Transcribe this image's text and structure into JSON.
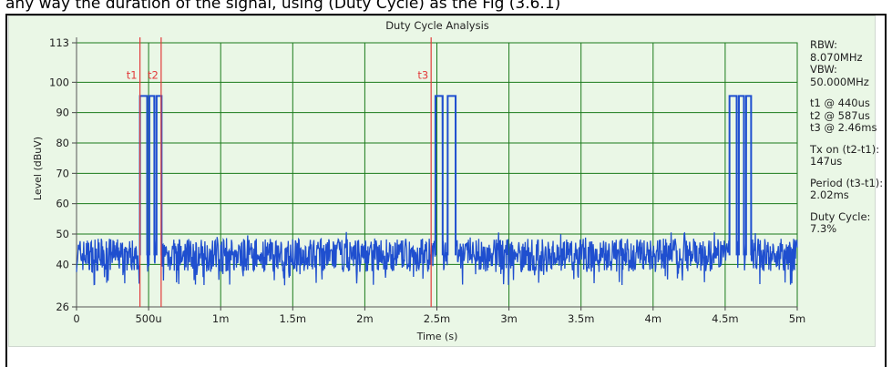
{
  "caption": "any way the duration of the signal, using (Duty Cycle) as the Fig (3.6.1)",
  "colors": {
    "panel_bg": "#eaf7e6",
    "grid": "#1a7a1a",
    "trace": "#1f4fcf",
    "marker": "#e23b3b",
    "text": "#222222"
  },
  "chart_data": {
    "type": "line",
    "title": "Duty Cycle Analysis",
    "xlabel": "Time (s)",
    "ylabel": "Level (dBuV)",
    "xlim": [
      0,
      0.005
    ],
    "ylim": [
      26,
      113
    ],
    "x_ticks": [
      {
        "value": 0,
        "label": "0"
      },
      {
        "value": 0.0005,
        "label": "500u"
      },
      {
        "value": 0.001,
        "label": "1m"
      },
      {
        "value": 0.0015,
        "label": "1.5m"
      },
      {
        "value": 0.002,
        "label": "2m"
      },
      {
        "value": 0.0025,
        "label": "2.5m"
      },
      {
        "value": 0.003,
        "label": "3m"
      },
      {
        "value": 0.0035,
        "label": "3.5m"
      },
      {
        "value": 0.004,
        "label": "4m"
      },
      {
        "value": 0.0045,
        "label": "4.5m"
      },
      {
        "value": 0.005,
        "label": "5m"
      }
    ],
    "y_ticks": [
      {
        "value": 26,
        "label": "26"
      },
      {
        "value": 40,
        "label": "40"
      },
      {
        "value": 50,
        "label": "50"
      },
      {
        "value": 60,
        "label": "60"
      },
      {
        "value": 70,
        "label": "70"
      },
      {
        "value": 80,
        "label": "80"
      },
      {
        "value": 90,
        "label": "90"
      },
      {
        "value": 100,
        "label": "100"
      },
      {
        "value": 113,
        "label": "113"
      }
    ],
    "grid": true,
    "noise_floor": {
      "min": 37,
      "max": 48,
      "center": 43
    },
    "burst_level": 95.5,
    "bursts": [
      {
        "segments": [
          [
            0.00044,
            0.00049
          ],
          [
            0.000505,
            0.00054
          ],
          [
            0.000555,
            0.00059
          ]
        ]
      },
      {
        "segments": [
          [
            0.00249,
            0.00254
          ],
          [
            0.0,
            0.0
          ],
          [
            0.002575,
            0.00263
          ]
        ]
      },
      {
        "segments": [
          [
            0.00453,
            0.00458
          ],
          [
            0.004595,
            0.00463
          ],
          [
            0.004645,
            0.00468
          ]
        ]
      }
    ],
    "markers": [
      {
        "label": "t1",
        "x": 0.00044
      },
      {
        "label": "t2",
        "x": 0.000587
      },
      {
        "label": "t3",
        "x": 0.00246
      }
    ]
  },
  "side": {
    "rbw_label": "RBW:",
    "rbw_value": "8.070MHz",
    "vbw_label": "VBW:",
    "vbw_value": "50.000MHz",
    "t1": "t1 @ 440us",
    "t2": "t2 @ 587us",
    "t3": "t3 @ 2.46ms",
    "txon_label": "Tx on (t2-t1):",
    "txon_value": "147us",
    "period_label": "Period (t3-t1):",
    "period_value": "2.02ms",
    "duty_label": "Duty Cycle:",
    "duty_value": "7.3%"
  }
}
